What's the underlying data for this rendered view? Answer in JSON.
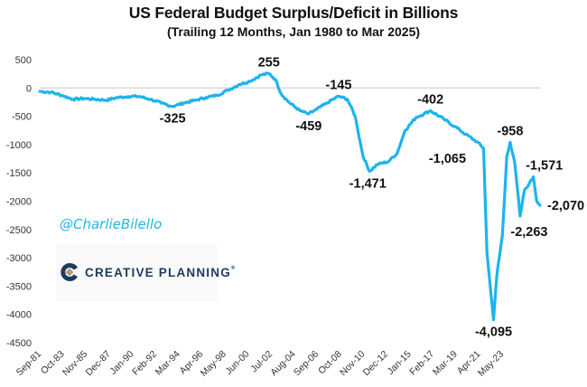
{
  "chart_data": {
    "type": "line",
    "title": "US Federal Budget Surplus/Deficit in Billions",
    "subtitle": "(Trailing 12 Months, Jan 1980 to Mar 2025)",
    "xlabel": "",
    "ylabel": "",
    "ylim": [
      -4500,
      500
    ],
    "yticks": [
      500,
      0,
      -500,
      -1000,
      -1500,
      -2000,
      -2500,
      -3000,
      -3500,
      -4000,
      -4500
    ],
    "ytick_labels": [
      "500",
      "0",
      "-500",
      "-1000",
      "-1500",
      "-2000",
      "-2500",
      "-3000",
      "-3500",
      "-4000",
      "-4500"
    ],
    "xlim": [
      "1980-01",
      "2025-03"
    ],
    "xtick_labels": [
      "Sep-81",
      "Oct-83",
      "Nov-85",
      "Dec-87",
      "Jan-90",
      "Feb-92",
      "Mar-94",
      "Apr-96",
      "May-98",
      "Jun-00",
      "Jul-02",
      "Aug-04",
      "Sep-06",
      "Oct-08",
      "Nov-10",
      "Dec-12",
      "Jan-15",
      "Feb-17",
      "Mar-19",
      "Apr-21",
      "May-23"
    ],
    "grid": "zero-line only",
    "line_color": "#1cb4ec",
    "series": [
      {
        "name": "Trailing 12M Surplus/Deficit ($B)",
        "points": [
          [
            1980.0,
            -60
          ],
          [
            1981.0,
            -75
          ],
          [
            1982.0,
            -130
          ],
          [
            1983.0,
            -200
          ],
          [
            1984.0,
            -185
          ],
          [
            1985.0,
            -200
          ],
          [
            1986.0,
            -215
          ],
          [
            1987.0,
            -170
          ],
          [
            1988.0,
            -150
          ],
          [
            1989.0,
            -150
          ],
          [
            1990.0,
            -200
          ],
          [
            1991.0,
            -270
          ],
          [
            1992.0,
            -325
          ],
          [
            1993.0,
            -265
          ],
          [
            1994.0,
            -220
          ],
          [
            1995.0,
            -170
          ],
          [
            1996.0,
            -130
          ],
          [
            1997.0,
            -40
          ],
          [
            1998.0,
            60
          ],
          [
            1999.0,
            120
          ],
          [
            2000.0,
            230
          ],
          [
            2000.7,
            255
          ],
          [
            2001.3,
            150
          ],
          [
            2001.8,
            -100
          ],
          [
            2002.5,
            -250
          ],
          [
            2003.5,
            -400
          ],
          [
            2004.3,
            -459
          ],
          [
            2005.0,
            -380
          ],
          [
            2006.0,
            -260
          ],
          [
            2007.0,
            -145
          ],
          [
            2007.8,
            -200
          ],
          [
            2008.5,
            -500
          ],
          [
            2009.2,
            -1200
          ],
          [
            2009.8,
            -1471
          ],
          [
            2010.5,
            -1350
          ],
          [
            2011.5,
            -1300
          ],
          [
            2012.3,
            -1150
          ],
          [
            2013.0,
            -750
          ],
          [
            2014.0,
            -520
          ],
          [
            2015.3,
            -402
          ],
          [
            2016.5,
            -550
          ],
          [
            2017.5,
            -680
          ],
          [
            2018.5,
            -820
          ],
          [
            2019.5,
            -950
          ],
          [
            2020.1,
            -1065
          ],
          [
            2020.4,
            -2900
          ],
          [
            2021.0,
            -4095
          ],
          [
            2021.3,
            -3300
          ],
          [
            2021.8,
            -2600
          ],
          [
            2022.2,
            -1200
          ],
          [
            2022.5,
            -958
          ],
          [
            2022.9,
            -1300
          ],
          [
            2023.4,
            -2263
          ],
          [
            2023.8,
            -1800
          ],
          [
            2024.2,
            -1700
          ],
          [
            2024.6,
            -1571
          ],
          [
            2024.9,
            -2000
          ],
          [
            2025.2,
            -2070
          ]
        ]
      }
    ],
    "annotations": [
      {
        "label": "-325",
        "x": 1992.0,
        "y": -325
      },
      {
        "label": "255",
        "x": 2000.7,
        "y": 255
      },
      {
        "label": "-459",
        "x": 2004.3,
        "y": -459
      },
      {
        "label": "-145",
        "x": 2007.0,
        "y": -145
      },
      {
        "label": "-1,471",
        "x": 2009.8,
        "y": -1471
      },
      {
        "label": "-402",
        "x": 2015.3,
        "y": -402
      },
      {
        "label": "-1,065",
        "x": 2020.1,
        "y": -1065
      },
      {
        "label": "-958",
        "x": 2022.5,
        "y": -958
      },
      {
        "label": "-4,095",
        "x": 2021.0,
        "y": -4095
      },
      {
        "label": "-1,571",
        "x": 2024.6,
        "y": -1571
      },
      {
        "label": "-2,263",
        "x": 2023.4,
        "y": -2263
      },
      {
        "label": "-2,070",
        "x": 2025.2,
        "y": -2070
      }
    ]
  },
  "watermark": {
    "handle": "@CharlieBilello",
    "logo_text": "CREATIVE PLANNING",
    "logo_mark": "®"
  }
}
